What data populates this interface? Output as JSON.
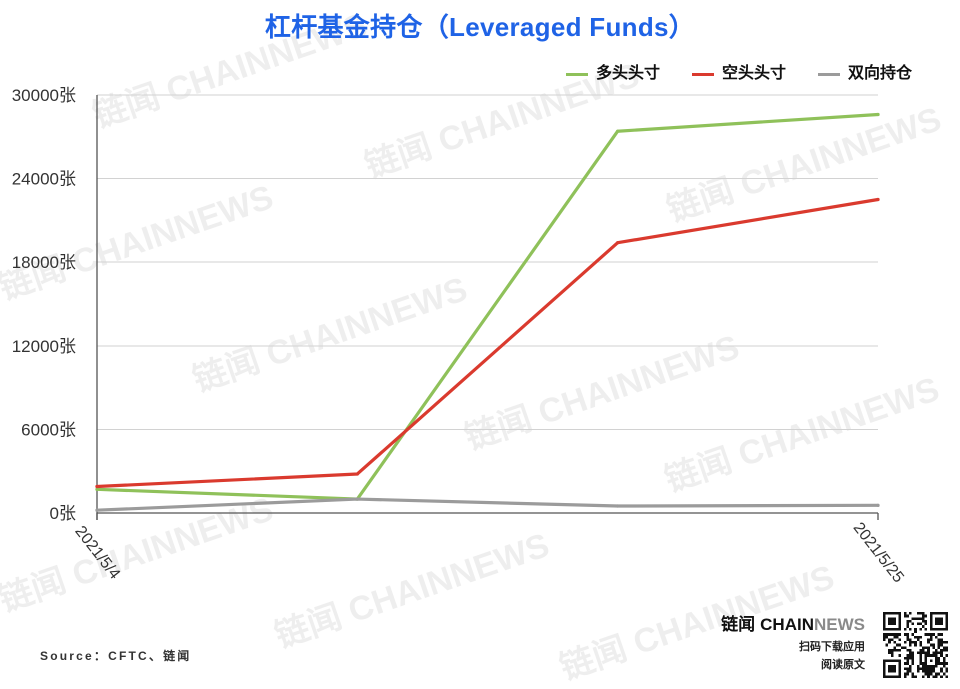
{
  "chart_data": {
    "type": "line",
    "title": "杠杆基金持仓（Leveraged Funds）",
    "categories": [
      "2021/5/4",
      "",
      "",
      "2021/5/25"
    ],
    "ylim": [
      0,
      30000
    ],
    "yticks": [
      0,
      6000,
      12000,
      18000,
      24000,
      30000
    ],
    "ytick_labels": [
      "0张",
      "6000张",
      "12000张",
      "18000张",
      "24000张",
      "30000张"
    ],
    "grid": true,
    "legend_position": "top-right",
    "series": [
      {
        "name": "多头头寸",
        "color": "#8fc15a",
        "values": [
          1700,
          1000,
          27400,
          28600
        ]
      },
      {
        "name": "空头头寸",
        "color": "#da3a2e",
        "values": [
          1900,
          2800,
          19400,
          22500
        ]
      },
      {
        "name": "双向持仓",
        "color": "#9b9b9b",
        "values": [
          200,
          1000,
          500,
          550
        ]
      }
    ]
  },
  "title_color": "#1f63e6",
  "source": "Source：CFTC、链闻",
  "watermark": "链闻 CHAINNEWS",
  "brand": {
    "logo_cn": "链闻",
    "logo_en_dark": "CHAIN",
    "logo_en_light": "NEWS",
    "line1": "扫码下载应用",
    "line2": "阅读原文"
  }
}
